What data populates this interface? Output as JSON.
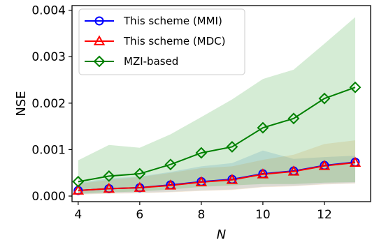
{
  "chart_data": {
    "type": "line",
    "title": "",
    "xlabel": "N",
    "ylabel": "NSE",
    "xlim": [
      3.8,
      13.5
    ],
    "ylim": [
      -0.00012,
      0.0041
    ],
    "x_ticks": [
      4,
      6,
      8,
      10,
      12
    ],
    "x_tick_labels": [
      "4",
      "6",
      "8",
      "10",
      "12"
    ],
    "y_ticks": [
      0.0,
      0.001,
      0.002,
      0.003,
      0.004
    ],
    "y_tick_labels": [
      "0.000",
      "0.001",
      "0.002",
      "0.003",
      "0.004"
    ],
    "grid": false,
    "legend_position": "top-left",
    "x": [
      4,
      5,
      6,
      7,
      8,
      9,
      10,
      11,
      12,
      13
    ],
    "series": [
      {
        "name": "This scheme (MMI)",
        "marker": "circle",
        "color": "#0000ff",
        "values": [
          0.00012,
          0.00016,
          0.00018,
          0.00024,
          0.00031,
          0.00036,
          0.00048,
          0.00054,
          0.00066,
          0.00073
        ],
        "band_lower": [
          4e-05,
          6e-05,
          7e-05,
          9e-05,
          0.00012,
          0.00014,
          0.0002,
          0.00022,
          0.00026,
          0.00028
        ],
        "band_upper": [
          0.00028,
          0.00038,
          0.00042,
          0.00052,
          0.00064,
          0.00071,
          0.00098,
          0.0008,
          0.00084,
          0.00087
        ],
        "band_color": "#4a90d9"
      },
      {
        "name": "This scheme (MDC)",
        "marker": "triangle",
        "color": "#ff0000",
        "values": [
          0.00012,
          0.00016,
          0.00018,
          0.00023,
          0.0003,
          0.00035,
          0.00047,
          0.00053,
          0.00065,
          0.00072
        ],
        "band_lower": [
          3e-05,
          5e-05,
          6e-05,
          8e-05,
          0.00011,
          0.00013,
          0.00019,
          0.00021,
          0.00025,
          0.00027
        ],
        "band_upper": [
          0.00026,
          0.00035,
          0.00041,
          0.0005,
          0.0006,
          0.00064,
          0.00078,
          0.00089,
          0.00112,
          0.0012
        ],
        "band_color": "#e8a24a"
      },
      {
        "name": "MZI-based",
        "marker": "diamond",
        "color": "#008000",
        "values": [
          0.00031,
          0.00043,
          0.00048,
          0.00068,
          0.00093,
          0.00106,
          0.00147,
          0.00167,
          0.0021,
          0.00234
        ],
        "band_lower": [
          5e-05,
          8e-05,
          0.0001,
          0.00014,
          0.0002,
          0.00023,
          0.00026,
          0.00026,
          0.00029,
          0.0003
        ],
        "band_upper": [
          0.00077,
          0.0011,
          0.00104,
          0.00133,
          0.0017,
          0.00208,
          0.00252,
          0.00272,
          0.00328,
          0.00385
        ],
        "band_color": "#2ca02c"
      }
    ]
  }
}
